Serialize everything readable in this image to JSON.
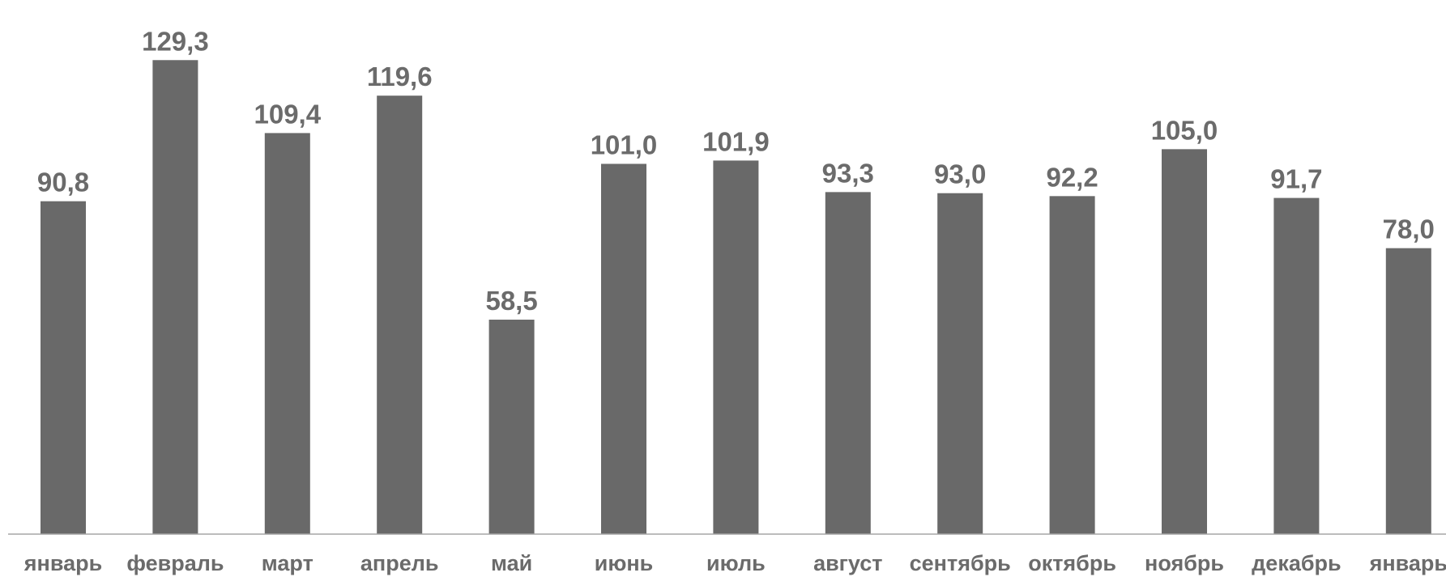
{
  "chart_data": {
    "type": "bar",
    "categories": [
      "январь",
      "февраль",
      "март",
      "апрель",
      "май",
      "июнь",
      "июль",
      "август",
      "сентябрь",
      "октябрь",
      "ноябрь",
      "декабрь",
      "январь"
    ],
    "values": [
      90.8,
      129.3,
      109.4,
      119.6,
      58.5,
      101.0,
      101.9,
      93.3,
      93.0,
      92.2,
      105.0,
      91.7,
      78.0
    ],
    "value_labels": [
      "90,8",
      "129,3",
      "109,4",
      "119,6",
      "58,5",
      "101,0",
      "101,9",
      "93,3",
      "93,0",
      "92,2",
      "105,0",
      "91,7",
      "78,0"
    ],
    "title": "",
    "xlabel": "",
    "ylabel": "",
    "ylim": [
      0,
      140
    ],
    "grid": false,
    "legend": "none",
    "bar_color": "#696969",
    "label_color": "#6b6b6b",
    "axis_color": "#a6a6a6"
  }
}
